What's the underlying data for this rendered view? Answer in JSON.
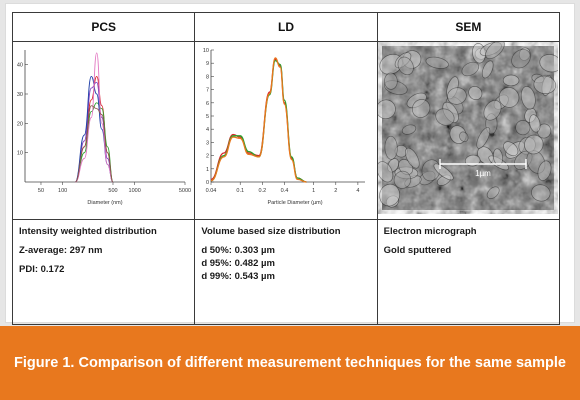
{
  "headers": {
    "pcs": "PCS",
    "ld": "LD",
    "sem": "SEM"
  },
  "pcs": {
    "y_ticks": [
      "40",
      "30",
      "20",
      "10"
    ],
    "x_ticks": [
      "50",
      "100",
      "500",
      "1000",
      "5000"
    ],
    "xlabel": "Diameter (nm)",
    "desc": {
      "line1": "Intensity weighted distribution",
      "line2": "Z-average: 297 nm",
      "line3": "PDI: 0.172"
    }
  },
  "ld": {
    "y_ticks": [
      "10",
      "9",
      "8",
      "7",
      "6",
      "5",
      "4",
      "3",
      "2",
      "1",
      "0"
    ],
    "x_ticks": [
      "0.04",
      "0.1",
      "0.2",
      "0.4",
      "1",
      "2",
      "4"
    ],
    "xlabel": "Particle Diameter (µm)",
    "desc": {
      "line1": "Volume based size distribution",
      "d50": "d 50%: 0.303 µm",
      "d95": "d 95%: 0.482 µm",
      "d99": "d 99%: 0.543 µm"
    }
  },
  "sem": {
    "scale_label": "1µm",
    "desc": {
      "line1": "Electron micrograph",
      "line2": "Gold sputtered"
    }
  },
  "caption": "Figure 1. Comparison of different measurement techniques for the same sample",
  "chart_data": [
    {
      "type": "line",
      "name_ref": "PCS",
      "x_scale": "log",
      "xlim": [
        30,
        5000
      ],
      "ylim": [
        0,
        45
      ],
      "xlabel": "Diameter (nm)",
      "ylabel": "",
      "series": [
        {
          "color": "#d62728",
          "x": [
            150,
            200,
            250,
            297,
            350,
            420,
            500
          ],
          "y": [
            0,
            12,
            28,
            36,
            26,
            10,
            0
          ]
        },
        {
          "color": "#7f3fbf",
          "x": [
            150,
            200,
            250,
            297,
            350,
            420,
            500
          ],
          "y": [
            0,
            14,
            32,
            34,
            22,
            8,
            0
          ]
        },
        {
          "color": "#2ca02c",
          "x": [
            150,
            200,
            250,
            297,
            350,
            420,
            500
          ],
          "y": [
            0,
            10,
            24,
            27,
            25,
            12,
            0
          ]
        },
        {
          "color": "#1f3fa8",
          "x": [
            150,
            200,
            250,
            297,
            350,
            420,
            500
          ],
          "y": [
            0,
            16,
            36,
            30,
            18,
            6,
            0
          ]
        },
        {
          "color": "#e377c2",
          "x": [
            150,
            200,
            250,
            297,
            350,
            420,
            500
          ],
          "y": [
            0,
            8,
            22,
            44,
            20,
            6,
            0
          ]
        },
        {
          "color": "#8c564b",
          "x": [
            150,
            200,
            250,
            297,
            350,
            420,
            500
          ],
          "y": [
            0,
            12,
            26,
            25,
            23,
            10,
            0
          ]
        }
      ]
    },
    {
      "type": "line",
      "name_ref": "LD",
      "x_scale": "log",
      "xlim": [
        0.04,
        5
      ],
      "ylim": [
        0,
        10
      ],
      "xlabel": "Particle Diameter (µm)",
      "ylabel": "",
      "series": [
        {
          "color": "#d62728",
          "x": [
            0.04,
            0.06,
            0.08,
            0.1,
            0.13,
            0.18,
            0.25,
            0.3,
            0.35,
            0.4,
            0.5,
            0.6,
            0.8
          ],
          "y": [
            0.2,
            2.2,
            3.6,
            3.4,
            2.2,
            2.0,
            6.8,
            9.3,
            8.8,
            6.0,
            1.8,
            0.3,
            0
          ]
        },
        {
          "color": "#2ca02c",
          "x": [
            0.04,
            0.06,
            0.08,
            0.1,
            0.13,
            0.18,
            0.25,
            0.3,
            0.35,
            0.4,
            0.5,
            0.6,
            0.8
          ],
          "y": [
            0.1,
            2.0,
            3.5,
            3.5,
            2.3,
            1.9,
            6.6,
            9.2,
            8.9,
            6.2,
            1.9,
            0.3,
            0
          ]
        },
        {
          "color": "#e8781e",
          "x": [
            0.04,
            0.06,
            0.08,
            0.1,
            0.13,
            0.18,
            0.25,
            0.3,
            0.35,
            0.4,
            0.5,
            0.6,
            0.8
          ],
          "y": [
            0.1,
            1.9,
            3.4,
            3.3,
            2.1,
            1.9,
            6.7,
            9.4,
            8.7,
            5.9,
            1.7,
            0.2,
            0
          ]
        }
      ]
    }
  ]
}
